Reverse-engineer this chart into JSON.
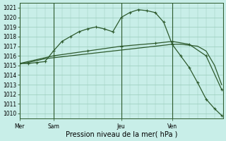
{
  "background_color": "#c8eee8",
  "grid_color": "#99ccbb",
  "line_color": "#2d5a2d",
  "xlabel": "Pression niveau de la mer( hPa )",
  "ylim": [
    1009.5,
    1021.5
  ],
  "yticks": [
    1010,
    1011,
    1012,
    1013,
    1014,
    1015,
    1016,
    1017,
    1018,
    1019,
    1020,
    1021
  ],
  "day_labels": [
    "Mer",
    "Sam",
    "Jeu",
    "Ven"
  ],
  "day_positions": [
    0,
    24,
    72,
    108
  ],
  "total_points": 144,
  "series1_x": [
    0,
    6,
    12,
    18,
    24,
    30,
    36,
    42,
    48,
    54,
    60,
    66,
    72,
    78,
    84,
    90,
    96,
    102,
    108,
    114,
    120,
    126,
    132,
    138,
    143
  ],
  "series1_y": [
    1015.2,
    1015.2,
    1015.3,
    1015.4,
    1016.5,
    1017.5,
    1018.0,
    1018.5,
    1018.8,
    1019.0,
    1018.8,
    1018.5,
    1020.0,
    1020.5,
    1020.8,
    1020.7,
    1020.5,
    1019.5,
    1017.2,
    1016.0,
    1014.8,
    1013.2,
    1011.5,
    1010.5,
    1009.8
  ],
  "series2_x": [
    0,
    24,
    48,
    72,
    96,
    108,
    120,
    132,
    143
  ],
  "series2_y": [
    1015.2,
    1016.0,
    1016.5,
    1017.0,
    1017.3,
    1017.5,
    1017.2,
    1016.0,
    1012.5
  ],
  "series3_x": [
    0,
    6,
    12,
    18,
    24,
    36,
    48,
    60,
    72,
    84,
    96,
    108,
    114,
    120,
    126,
    132,
    138,
    143
  ],
  "series3_y": [
    1015.2,
    1015.3,
    1015.5,
    1015.7,
    1015.8,
    1016.0,
    1016.2,
    1016.4,
    1016.6,
    1016.8,
    1017.0,
    1017.2,
    1017.2,
    1017.1,
    1017.0,
    1016.5,
    1015.0,
    1013.0
  ],
  "vline_x": [
    0,
    24,
    72,
    108
  ],
  "marker": "+",
  "linewidth": 0.9,
  "fontsize_tick": 5.5,
  "fontsize_label": 7
}
